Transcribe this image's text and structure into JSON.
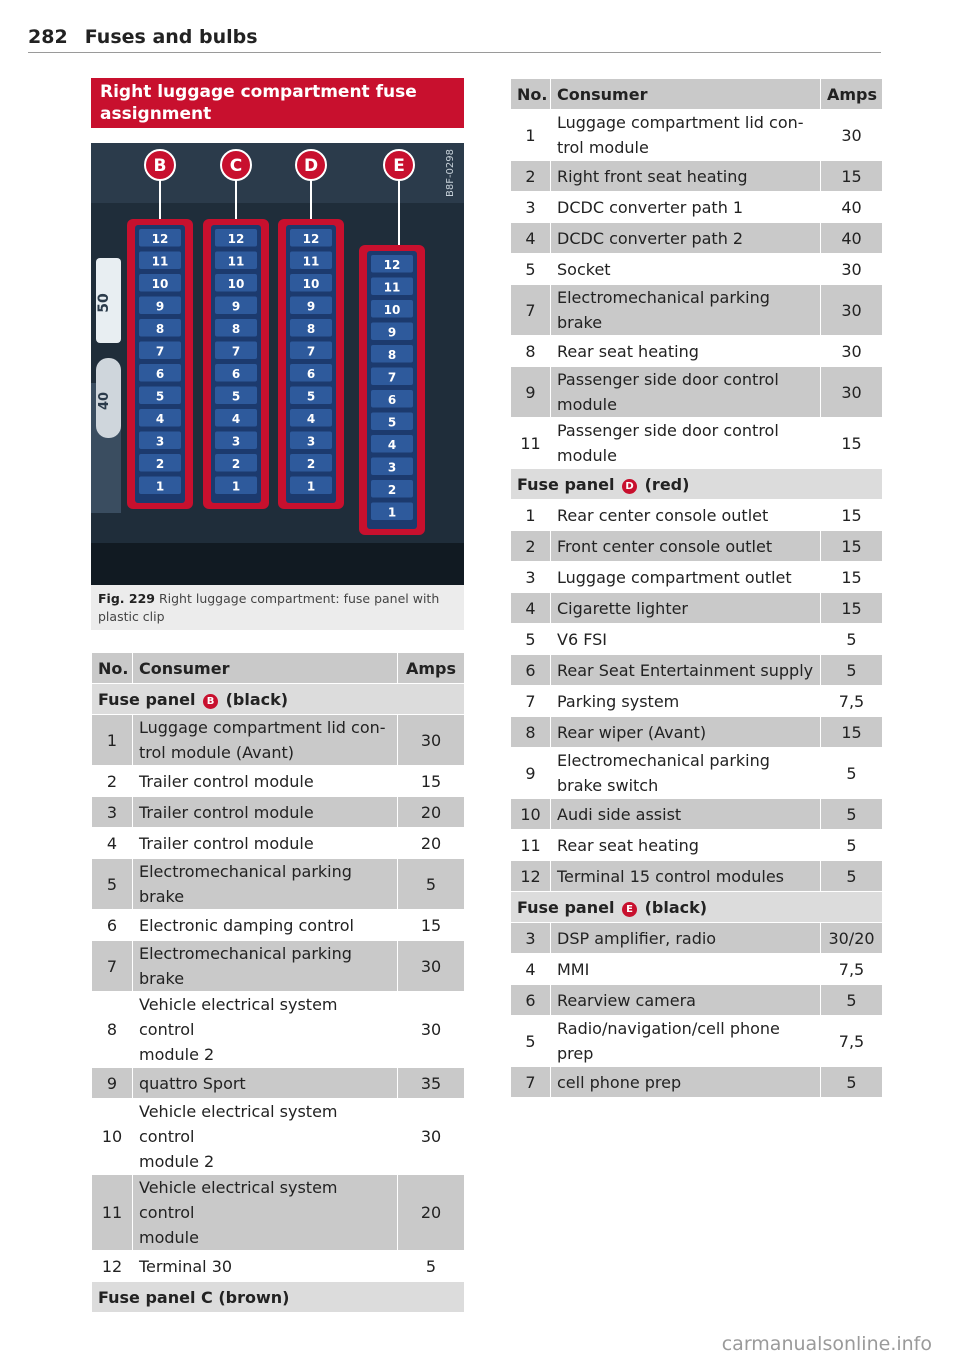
{
  "header": {
    "page_number": "282",
    "title": "Fuses and bulbs"
  },
  "section_title": "Right luggage compartment fuse assignment",
  "figure": {
    "label": "Fig. 229",
    "caption": "Right luggage compartment: fuse panel with plastic clip",
    "code": "B8F-0298",
    "panel_letters": [
      "B",
      "C",
      "D",
      "E"
    ],
    "side_labels": [
      "50",
      "40"
    ]
  },
  "left_table": {
    "headers": {
      "no": "No.",
      "consumer": "Consumer",
      "amps": "Amps"
    },
    "group_b": {
      "prefix": "Fuse panel",
      "letter": "B",
      "suffix": "(black)"
    },
    "rows_b": [
      {
        "no": "1",
        "consumer": "Luggage compartment lid con-\ntrol module (Avant)",
        "amps": "30",
        "shade": true
      },
      {
        "no": "2",
        "consumer": "Trailer control module",
        "amps": "15",
        "shade": false
      },
      {
        "no": "3",
        "consumer": "Trailer control module",
        "amps": "20",
        "shade": true
      },
      {
        "no": "4",
        "consumer": "Trailer control module",
        "amps": "20",
        "shade": false
      },
      {
        "no": "5",
        "consumer": "Electromechanical parking\nbrake",
        "amps": "5",
        "shade": true
      },
      {
        "no": "6",
        "consumer": "Electronic damping control",
        "amps": "15",
        "shade": false
      },
      {
        "no": "7",
        "consumer": "Electromechanical parking\nbrake",
        "amps": "30",
        "shade": true
      },
      {
        "no": "8",
        "consumer": "Vehicle electrical system control\nmodule 2",
        "amps": "30",
        "shade": false
      },
      {
        "no": "9",
        "consumer": "quattro Sport",
        "amps": "35",
        "shade": true
      },
      {
        "no": "10",
        "consumer": "Vehicle electrical system control\nmodule 2",
        "amps": "30",
        "shade": false
      },
      {
        "no": "11",
        "consumer": "Vehicle electrical system control\nmodule",
        "amps": "20",
        "shade": true
      },
      {
        "no": "12",
        "consumer": "Terminal 30",
        "amps": "5",
        "shade": false
      }
    ],
    "group_c": "Fuse panel C (brown)"
  },
  "right_table": {
    "headers": {
      "no": "No.",
      "consumer": "Consumer",
      "amps": "Amps"
    },
    "rows_c": [
      {
        "no": "1",
        "consumer": "Luggage compartment lid con-\ntrol module",
        "amps": "30",
        "shade": false
      },
      {
        "no": "2",
        "consumer": "Right front seat heating",
        "amps": "15",
        "shade": true
      },
      {
        "no": "3",
        "consumer": "DCDC converter path 1",
        "amps": "40",
        "shade": false
      },
      {
        "no": "4",
        "consumer": "DCDC converter path 2",
        "amps": "40",
        "shade": true
      },
      {
        "no": "5",
        "consumer": "Socket",
        "amps": "30",
        "shade": false
      },
      {
        "no": "7",
        "consumer": "Electromechanical parking\nbrake",
        "amps": "30",
        "shade": true
      },
      {
        "no": "8",
        "consumer": "Rear seat heating",
        "amps": "30",
        "shade": false
      },
      {
        "no": "9",
        "consumer": "Passenger side door control\nmodule",
        "amps": "30",
        "shade": true
      },
      {
        "no": "11",
        "consumer": "Passenger side door control\nmodule",
        "amps": "15",
        "shade": false
      }
    ],
    "group_d": {
      "prefix": "Fuse panel",
      "letter": "D",
      "suffix": "(red)"
    },
    "rows_d": [
      {
        "no": "1",
        "consumer": "Rear center console outlet",
        "amps": "15",
        "shade": false
      },
      {
        "no": "2",
        "consumer": "Front center console outlet",
        "amps": "15",
        "shade": true
      },
      {
        "no": "3",
        "consumer": "Luggage compartment outlet",
        "amps": "15",
        "shade": false
      },
      {
        "no": "4",
        "consumer": "Cigarette lighter",
        "amps": "15",
        "shade": true
      },
      {
        "no": "5",
        "consumer": "V6 FSI",
        "amps": "5",
        "shade": false
      },
      {
        "no": "6",
        "consumer": "Rear Seat Entertainment supply",
        "amps": "5",
        "shade": true
      },
      {
        "no": "7",
        "consumer": "Parking system",
        "amps": "7,5",
        "shade": false
      },
      {
        "no": "8",
        "consumer": "Rear wiper (Avant)",
        "amps": "15",
        "shade": true
      },
      {
        "no": "9",
        "consumer": "Electromechanical parking\nbrake switch",
        "amps": "5",
        "shade": false
      },
      {
        "no": "10",
        "consumer": "Audi side assist",
        "amps": "5",
        "shade": true
      },
      {
        "no": "11",
        "consumer": "Rear seat heating",
        "amps": "5",
        "shade": false
      },
      {
        "no": "12",
        "consumer": "Terminal 15 control modules",
        "amps": "5",
        "shade": true
      }
    ],
    "group_e": {
      "prefix": "Fuse panel",
      "letter": "E",
      "suffix": "(black)"
    },
    "rows_e": [
      {
        "no": "3",
        "consumer": "DSP amplifier, radio",
        "amps": "30/20",
        "shade": true
      },
      {
        "no": "4",
        "consumer": "MMI",
        "amps": "7,5",
        "shade": false
      },
      {
        "no": "6",
        "consumer": "Rearview camera",
        "amps": "5",
        "shade": true
      },
      {
        "no": "5",
        "consumer": "Radio/navigation/cell phone\nprep",
        "amps": "7,5",
        "shade": false
      },
      {
        "no": "7",
        "consumer": "cell phone prep",
        "amps": "5",
        "shade": true
      }
    ]
  },
  "footer": {
    "watermark": "carmanualsonline.info"
  }
}
